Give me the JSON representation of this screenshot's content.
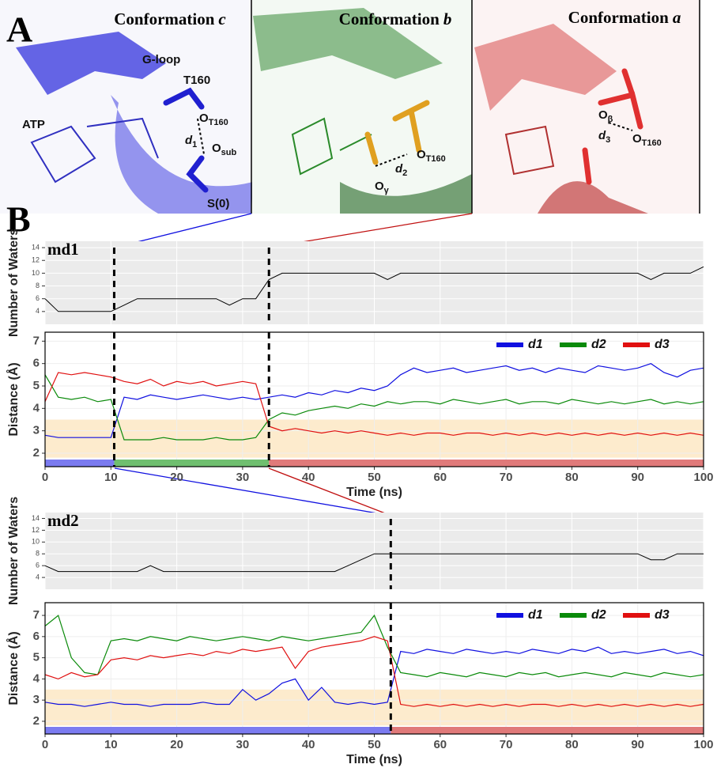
{
  "panel_a": {
    "label": "A",
    "images": [
      {
        "title": {
          "text": "Conformation",
          "italic": "c"
        },
        "labels": [
          {
            "text": "G-loop"
          },
          {
            "text": "T160"
          },
          {
            "text": "ATP"
          },
          {
            "text": "d",
            "sub": "1"
          },
          {
            "text": "O",
            "sub": "T160"
          },
          {
            "text": "O",
            "sub": "sub"
          },
          {
            "text": "S(0)"
          }
        ]
      },
      {
        "title": {
          "text": "Conformation",
          "italic": "b"
        },
        "labels": [
          {
            "text": "O",
            "sub": "T160"
          },
          {
            "text": "d",
            "sub": "2"
          },
          {
            "text": "O",
            "sub": "γ"
          }
        ]
      },
      {
        "title": {
          "text": "Conformation",
          "italic": "a"
        },
        "labels": [
          {
            "text": "O",
            "sub": "β"
          },
          {
            "text": "d",
            "sub": "3"
          },
          {
            "text": "O",
            "sub": "T160"
          }
        ]
      }
    ]
  },
  "panel_b": {
    "label": "B"
  },
  "chart_data": [
    {
      "type": "line",
      "title": "md1",
      "ylabel": "Number of Waters",
      "background": "#ebebeb",
      "grid_color": "#ffffff",
      "xtick_labels": false,
      "xlim": [
        0,
        100
      ],
      "xticks": [
        0,
        10,
        20,
        30,
        40,
        50,
        60,
        70,
        80,
        90,
        100
      ],
      "ylim": [
        2,
        15
      ],
      "yticks": [
        4,
        6,
        8,
        10,
        12,
        14
      ],
      "x": [
        0,
        2,
        4,
        6,
        8,
        10,
        12,
        14,
        16,
        18,
        20,
        22,
        24,
        26,
        28,
        30,
        32,
        34,
        36,
        38,
        40,
        42,
        44,
        46,
        48,
        50,
        52,
        54,
        56,
        58,
        60,
        62,
        64,
        66,
        68,
        70,
        72,
        74,
        76,
        78,
        80,
        82,
        84,
        86,
        88,
        90,
        92,
        94,
        96,
        98,
        100
      ],
      "color": "#000000",
      "values": [
        6,
        4,
        4,
        4,
        4,
        4,
        5,
        6,
        6,
        6,
        6,
        6,
        6,
        6,
        5,
        6,
        6,
        9,
        10,
        10,
        10,
        10,
        10,
        10,
        10,
        10,
        9,
        10,
        10,
        10,
        10,
        10,
        10,
        10,
        10,
        10,
        10,
        10,
        10,
        10,
        10,
        10,
        10,
        10,
        10,
        10,
        9,
        10,
        10,
        10,
        11
      ],
      "transitions": [
        10.5,
        34
      ]
    },
    {
      "type": "line",
      "ylabel": "Distance (Å)",
      "xlabel": "Time (ns)",
      "background": "#ffffff",
      "grid_color": "#eeeeee",
      "xtick_labels": true,
      "xlim": [
        0,
        100
      ],
      "xticks": [
        0,
        10,
        20,
        30,
        40,
        50,
        60,
        70,
        80,
        90,
        100
      ],
      "ylim": [
        1.4,
        7.4
      ],
      "yticks": [
        2,
        3,
        4,
        5,
        6,
        7
      ],
      "band": [
        1.8,
        3.5
      ],
      "band_color": "#fdebcd",
      "x": [
        0,
        2,
        4,
        6,
        8,
        10,
        12,
        14,
        16,
        18,
        20,
        22,
        24,
        26,
        28,
        30,
        32,
        34,
        36,
        38,
        40,
        42,
        44,
        46,
        48,
        50,
        52,
        54,
        56,
        58,
        60,
        62,
        64,
        66,
        68,
        70,
        72,
        74,
        76,
        78,
        80,
        82,
        84,
        86,
        88,
        90,
        92,
        94,
        96,
        98,
        100
      ],
      "series": [
        {
          "name": "d1",
          "color": "#1010e0",
          "values": [
            2.8,
            2.7,
            2.7,
            2.7,
            2.7,
            2.7,
            4.5,
            4.4,
            4.6,
            4.5,
            4.4,
            4.5,
            4.6,
            4.5,
            4.4,
            4.5,
            4.4,
            4.5,
            4.6,
            4.5,
            4.7,
            4.6,
            4.8,
            4.7,
            4.9,
            4.8,
            5.0,
            5.5,
            5.8,
            5.6,
            5.7,
            5.8,
            5.6,
            5.7,
            5.8,
            5.9,
            5.7,
            5.8,
            5.6,
            5.8,
            5.7,
            5.6,
            5.9,
            5.8,
            5.7,
            5.8,
            6.0,
            5.6,
            5.4,
            5.7,
            5.8
          ]
        },
        {
          "name": "d2",
          "color": "#0a8a0a",
          "values": [
            5.5,
            4.5,
            4.4,
            4.5,
            4.3,
            4.4,
            2.6,
            2.6,
            2.6,
            2.7,
            2.6,
            2.6,
            2.6,
            2.7,
            2.6,
            2.6,
            2.7,
            3.5,
            3.8,
            3.7,
            3.9,
            4.0,
            4.1,
            4.0,
            4.2,
            4.1,
            4.3,
            4.2,
            4.3,
            4.3,
            4.2,
            4.4,
            4.3,
            4.2,
            4.3,
            4.4,
            4.2,
            4.3,
            4.3,
            4.2,
            4.4,
            4.3,
            4.2,
            4.3,
            4.2,
            4.3,
            4.4,
            4.2,
            4.3,
            4.2,
            4.3
          ]
        },
        {
          "name": "d3",
          "color": "#e01010",
          "values": [
            4.3,
            5.6,
            5.5,
            5.6,
            5.5,
            5.4,
            5.2,
            5.1,
            5.3,
            5.0,
            5.2,
            5.1,
            5.2,
            5.0,
            5.1,
            5.2,
            5.1,
            3.2,
            3.0,
            3.1,
            3.0,
            2.9,
            3.0,
            2.9,
            3.0,
            2.9,
            2.8,
            2.9,
            2.8,
            2.9,
            2.9,
            2.8,
            2.9,
            2.9,
            2.8,
            2.9,
            2.8,
            2.9,
            2.8,
            2.9,
            2.8,
            2.9,
            2.8,
            2.9,
            2.8,
            2.9,
            2.8,
            2.9,
            2.8,
            2.9,
            2.8
          ]
        }
      ],
      "states": [
        {
          "start": 0,
          "end": 10.5,
          "color": "#7b7bf0"
        },
        {
          "start": 10.5,
          "end": 34,
          "color": "#6fbf6f"
        },
        {
          "start": 34,
          "end": 100,
          "color": "#e07a7a"
        }
      ],
      "transitions": [
        10.5,
        34
      ]
    },
    {
      "type": "line",
      "title": "md2",
      "ylabel": "Number of Waters",
      "background": "#ebebeb",
      "grid_color": "#ffffff",
      "xtick_labels": false,
      "xlim": [
        0,
        100
      ],
      "xticks": [
        0,
        10,
        20,
        30,
        40,
        50,
        60,
        70,
        80,
        90,
        100
      ],
      "ylim": [
        2,
        15
      ],
      "yticks": [
        4,
        6,
        8,
        10,
        12,
        14
      ],
      "x": [
        0,
        2,
        4,
        6,
        8,
        10,
        12,
        14,
        16,
        18,
        20,
        22,
        24,
        26,
        28,
        30,
        32,
        34,
        36,
        38,
        40,
        42,
        44,
        46,
        48,
        50,
        52,
        54,
        56,
        58,
        60,
        62,
        64,
        66,
        68,
        70,
        72,
        74,
        76,
        78,
        80,
        82,
        84,
        86,
        88,
        90,
        92,
        94,
        96,
        98,
        100
      ],
      "color": "#000000",
      "values": [
        6,
        5,
        5,
        5,
        5,
        5,
        5,
        5,
        6,
        5,
        5,
        5,
        5,
        5,
        5,
        5,
        5,
        5,
        5,
        5,
        5,
        5,
        5,
        6,
        7,
        8,
        8,
        8,
        8,
        8,
        8,
        8,
        8,
        8,
        8,
        8,
        8,
        8,
        8,
        8,
        8,
        8,
        8,
        8,
        8,
        8,
        7,
        7,
        8,
        8,
        8
      ],
      "transitions": [
        52.5
      ]
    },
    {
      "type": "line",
      "ylabel": "Distance (Å)",
      "xlabel": "Time (ns)",
      "background": "#ffffff",
      "grid_color": "#eeeeee",
      "xtick_labels": true,
      "xlim": [
        0,
        100
      ],
      "xticks": [
        0,
        10,
        20,
        30,
        40,
        50,
        60,
        70,
        80,
        90,
        100
      ],
      "ylim": [
        1.4,
        7.6
      ],
      "yticks": [
        2,
        3,
        4,
        5,
        6,
        7
      ],
      "band": [
        1.8,
        3.5
      ],
      "band_color": "#fdebcd",
      "x": [
        0,
        2,
        4,
        6,
        8,
        10,
        12,
        14,
        16,
        18,
        20,
        22,
        24,
        26,
        28,
        30,
        32,
        34,
        36,
        38,
        40,
        42,
        44,
        46,
        48,
        50,
        52,
        54,
        56,
        58,
        60,
        62,
        64,
        66,
        68,
        70,
        72,
        74,
        76,
        78,
        80,
        82,
        84,
        86,
        88,
        90,
        92,
        94,
        96,
        98,
        100
      ],
      "series": [
        {
          "name": "d1",
          "color": "#1010e0",
          "values": [
            2.9,
            2.8,
            2.8,
            2.7,
            2.8,
            2.9,
            2.8,
            2.8,
            2.7,
            2.8,
            2.8,
            2.8,
            2.9,
            2.8,
            2.8,
            3.5,
            3.0,
            3.3,
            3.8,
            4.0,
            3.0,
            3.6,
            2.9,
            2.8,
            2.9,
            2.8,
            2.9,
            5.3,
            5.2,
            5.4,
            5.3,
            5.2,
            5.4,
            5.3,
            5.2,
            5.3,
            5.2,
            5.4,
            5.3,
            5.2,
            5.4,
            5.3,
            5.5,
            5.2,
            5.3,
            5.2,
            5.3,
            5.4,
            5.2,
            5.3,
            5.1
          ]
        },
        {
          "name": "d2",
          "color": "#0a8a0a",
          "values": [
            6.5,
            7.0,
            5.0,
            4.3,
            4.2,
            5.8,
            5.9,
            5.8,
            6.0,
            5.9,
            5.8,
            6.0,
            5.9,
            5.8,
            5.9,
            6.0,
            5.9,
            5.8,
            6.0,
            5.9,
            5.8,
            5.9,
            6.0,
            6.1,
            6.2,
            7.0,
            5.5,
            4.3,
            4.2,
            4.1,
            4.3,
            4.2,
            4.1,
            4.3,
            4.2,
            4.1,
            4.3,
            4.2,
            4.3,
            4.1,
            4.2,
            4.3,
            4.2,
            4.1,
            4.3,
            4.2,
            4.1,
            4.3,
            4.2,
            4.1,
            4.2
          ]
        },
        {
          "name": "d3",
          "color": "#e01010",
          "values": [
            4.2,
            4.0,
            4.3,
            4.1,
            4.2,
            4.9,
            5.0,
            4.9,
            5.1,
            5.0,
            5.1,
            5.2,
            5.1,
            5.3,
            5.2,
            5.4,
            5.3,
            5.4,
            5.5,
            4.5,
            5.3,
            5.5,
            5.6,
            5.7,
            5.8,
            6.0,
            5.8,
            2.8,
            2.7,
            2.8,
            2.7,
            2.8,
            2.7,
            2.8,
            2.7,
            2.8,
            2.7,
            2.8,
            2.8,
            2.7,
            2.8,
            2.7,
            2.8,
            2.7,
            2.8,
            2.7,
            2.8,
            2.7,
            2.8,
            2.7,
            2.8
          ]
        }
      ],
      "states": [
        {
          "start": 0,
          "end": 52.5,
          "color": "#7b7bf0"
        },
        {
          "start": 52.5,
          "end": 100,
          "color": "#e07a7a"
        }
      ],
      "transitions": [
        52.5
      ]
    }
  ]
}
